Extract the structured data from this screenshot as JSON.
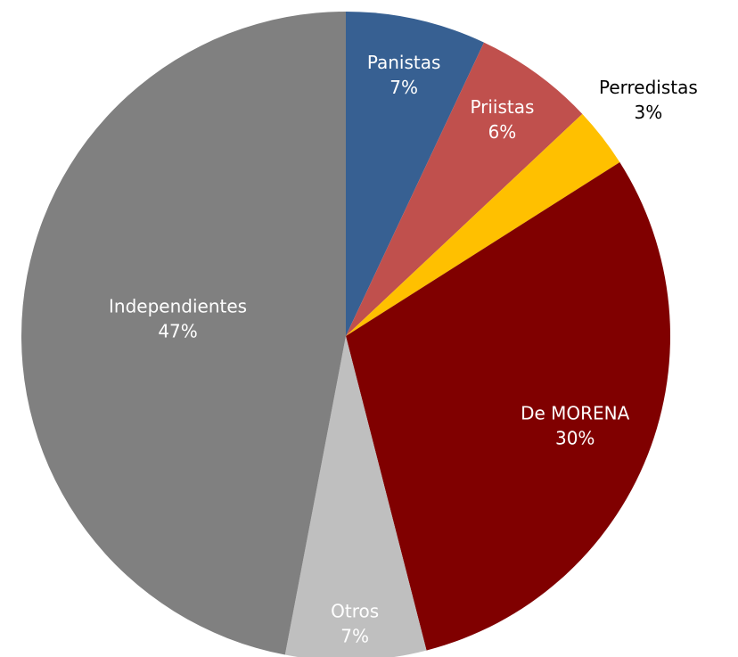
{
  "chart_data": {
    "type": "pie",
    "categories": [
      "Panistas",
      "Priistas",
      "Perredistas",
      "De MORENA",
      "Otros",
      "Independientes"
    ],
    "values": [
      7,
      6,
      3,
      30,
      7,
      47
    ],
    "value_labels": [
      "7%",
      "6%",
      "3%",
      "30%",
      "7%",
      "47%"
    ],
    "colors": [
      "#376092",
      "#c0504d",
      "#ffc000",
      "#800000",
      "#bfbfbf",
      "#808080"
    ]
  }
}
